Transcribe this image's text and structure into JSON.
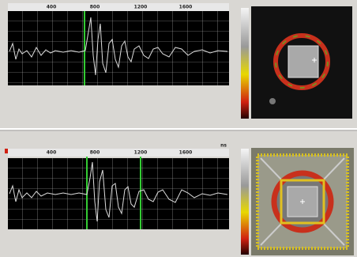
{
  "top_panel": {
    "axis_labels": [
      "400",
      "800",
      "1200",
      "1600"
    ]
  },
  "bottom_panel": {
    "axis_labels": [
      "400",
      "800",
      "1200",
      "1600"
    ],
    "unit": "ns"
  }
}
